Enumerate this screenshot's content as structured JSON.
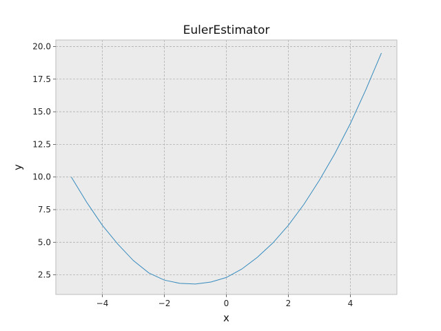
{
  "chart_data": {
    "type": "line",
    "title": "EulerEstimator",
    "xlabel": "x",
    "ylabel": "y",
    "xlim": [
      -5.5,
      5.5
    ],
    "ylim": [
      1.0,
      20.5
    ],
    "xticks": [
      -4,
      -2,
      0,
      2,
      4
    ],
    "xtick_labels": [
      "−4",
      "−2",
      "0",
      "2",
      "4"
    ],
    "yticks": [
      2.5,
      5.0,
      7.5,
      10.0,
      12.5,
      15.0,
      17.5,
      20.0
    ],
    "ytick_labels": [
      "2.5",
      "5.0",
      "7.5",
      "10.0",
      "12.5",
      "15.0",
      "17.5",
      "20.0"
    ],
    "grid": true,
    "background": "#ebebeb",
    "series": [
      {
        "color": "#348abd",
        "x": [
          -5,
          -4.5,
          -4,
          -3.5,
          -3,
          -2.5,
          -2,
          -1.5,
          -1,
          -0.5,
          0,
          0.5,
          1,
          1.5,
          2,
          2.5,
          3,
          3.5,
          4,
          4.5,
          5
        ],
        "y": [
          10.0,
          8.05,
          6.3,
          4.85,
          3.6,
          2.65,
          2.1,
          1.85,
          1.8,
          1.95,
          2.3,
          2.95,
          3.85,
          4.95,
          6.3,
          7.9,
          9.75,
          11.8,
          14.1,
          16.7,
          19.5
        ]
      }
    ]
  }
}
